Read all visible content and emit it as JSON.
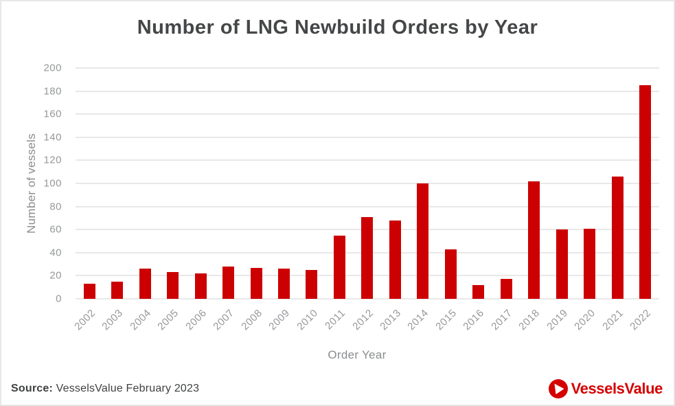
{
  "chart_data": {
    "type": "bar",
    "title": "Number of LNG Newbuild Orders by Year",
    "xlabel": "Order Year",
    "ylabel": "Number of vessels",
    "categories": [
      "2002",
      "2003",
      "2004",
      "2005",
      "2006",
      "2007",
      "2008",
      "2009",
      "2010",
      "2011",
      "2012",
      "2013",
      "2014",
      "2015",
      "2016",
      "2017",
      "2018",
      "2019",
      "2020",
      "2021",
      "2022"
    ],
    "values": [
      13,
      15,
      26,
      23,
      22,
      28,
      27,
      26,
      25,
      55,
      71,
      68,
      100,
      43,
      12,
      17,
      102,
      60,
      61,
      106,
      185
    ],
    "ylim": [
      0,
      200
    ],
    "ytick_step": 20,
    "grid": "horizontal",
    "legend": false,
    "bar_color": "#cc0000"
  },
  "footer": {
    "source_label": "Source:",
    "source_text": "VesselsValue February 2023",
    "logo_text": "VesselsValue"
  },
  "colors": {
    "bar": "#cc0000",
    "brand_red": "#d40000",
    "grid": "#e8e8e8",
    "tick_text": "#95979a",
    "axis_text": "#8a8c8e",
    "title_text": "#454647",
    "body_text": "#3f4040",
    "border": "#e7e7e7",
    "background": "#ffffff"
  }
}
